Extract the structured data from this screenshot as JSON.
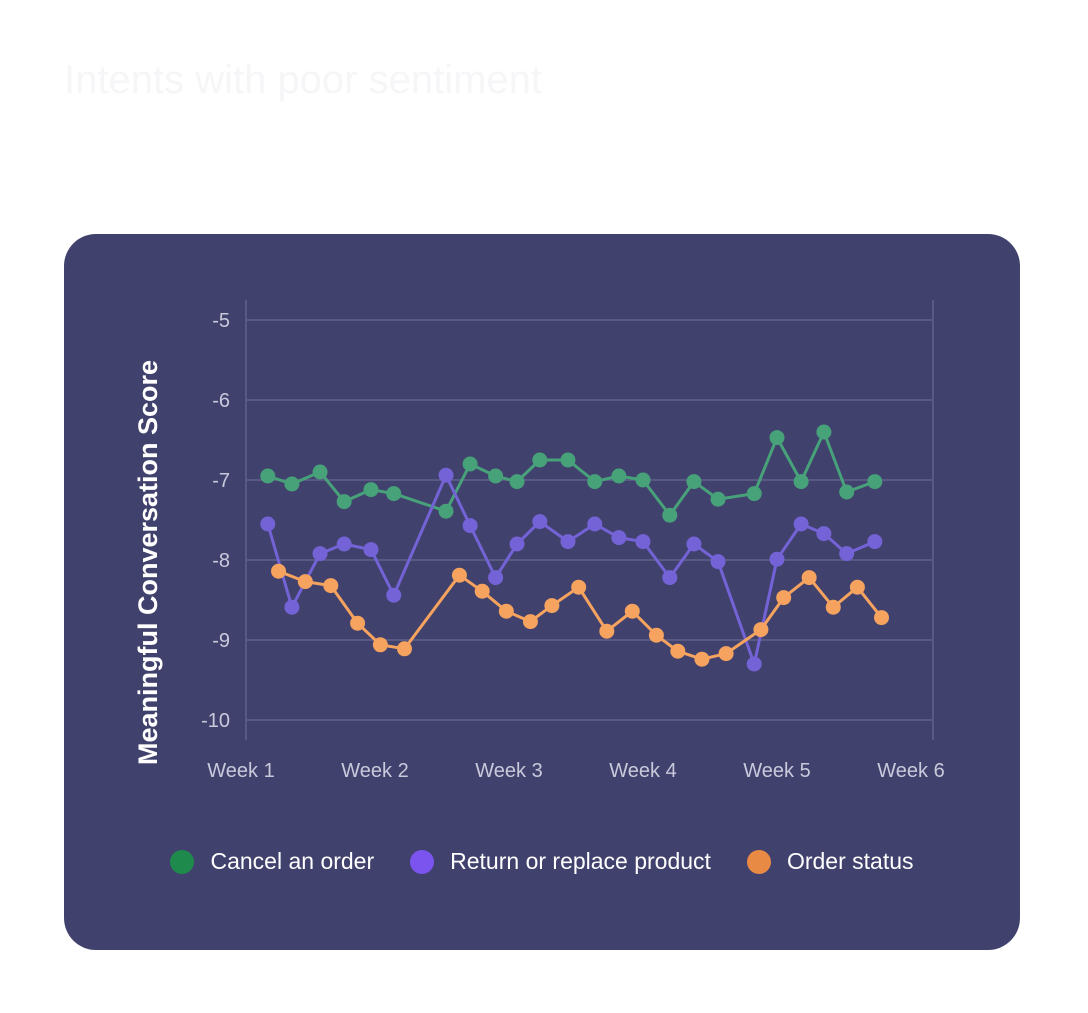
{
  "page": {
    "title": "Intents with poor sentiment"
  },
  "chart_data": {
    "type": "line",
    "ylabel": "Meaningful Conversation Score",
    "xlabel": "",
    "ylim": [
      -10,
      -5
    ],
    "yticks": [
      -5,
      -6,
      -7,
      -8,
      -9,
      -10
    ],
    "xlim": [
      1,
      6
    ],
    "x_tick_labels": [
      "Week 1",
      "Week 2",
      "Week 3",
      "Week 4",
      "Week 5",
      "Week 6"
    ],
    "grid": true,
    "legend_position": "bottom",
    "series": [
      {
        "name": "Cancel an order",
        "color": "#47a27a",
        "legend_color": "#1e8a4c",
        "points": [
          [
            1.2,
            -6.95
          ],
          [
            1.38,
            -7.05
          ],
          [
            1.59,
            -6.9
          ],
          [
            1.77,
            -7.27
          ],
          [
            1.97,
            -7.12
          ],
          [
            2.14,
            -7.17
          ],
          [
            2.53,
            -7.39
          ],
          [
            2.71,
            -6.8
          ],
          [
            2.9,
            -6.95
          ],
          [
            3.06,
            -7.02
          ],
          [
            3.23,
            -6.75
          ],
          [
            3.44,
            -6.75
          ],
          [
            3.64,
            -7.02
          ],
          [
            3.82,
            -6.95
          ],
          [
            4.0,
            -7.0
          ],
          [
            4.2,
            -7.44
          ],
          [
            4.38,
            -7.02
          ],
          [
            4.56,
            -7.24
          ],
          [
            4.83,
            -7.17
          ],
          [
            5.0,
            -6.47
          ],
          [
            5.18,
            -7.02
          ],
          [
            5.35,
            -6.4
          ],
          [
            5.52,
            -7.15
          ],
          [
            5.73,
            -7.02
          ]
        ]
      },
      {
        "name": "Return or replace product",
        "color": "#7463d6",
        "legend_color": "#7b54f0",
        "points": [
          [
            1.2,
            -7.55
          ],
          [
            1.38,
            -8.59
          ],
          [
            1.59,
            -7.92
          ],
          [
            1.77,
            -7.8
          ],
          [
            1.97,
            -7.87
          ],
          [
            2.14,
            -8.44
          ],
          [
            2.53,
            -6.94
          ],
          [
            2.71,
            -7.57
          ],
          [
            2.9,
            -8.22
          ],
          [
            3.06,
            -7.8
          ],
          [
            3.23,
            -7.52
          ],
          [
            3.44,
            -7.77
          ],
          [
            3.64,
            -7.55
          ],
          [
            3.82,
            -7.72
          ],
          [
            4.0,
            -7.77
          ],
          [
            4.2,
            -8.22
          ],
          [
            4.38,
            -7.8
          ],
          [
            4.56,
            -8.02
          ],
          [
            4.83,
            -9.3
          ],
          [
            5.0,
            -7.99
          ],
          [
            5.18,
            -7.55
          ],
          [
            5.35,
            -7.67
          ],
          [
            5.52,
            -7.92
          ],
          [
            5.73,
            -7.77
          ]
        ]
      },
      {
        "name": "Order status",
        "color": "#f5a35f",
        "legend_color": "#e98a44",
        "points": [
          [
            1.28,
            -8.14
          ],
          [
            1.48,
            -8.27
          ],
          [
            1.67,
            -8.32
          ],
          [
            1.87,
            -8.79
          ],
          [
            2.04,
            -9.06
          ],
          [
            2.22,
            -9.11
          ],
          [
            2.63,
            -8.19
          ],
          [
            2.8,
            -8.39
          ],
          [
            2.98,
            -8.64
          ],
          [
            3.16,
            -8.77
          ],
          [
            3.32,
            -8.57
          ],
          [
            3.52,
            -8.34
          ],
          [
            3.73,
            -8.89
          ],
          [
            3.92,
            -8.64
          ],
          [
            4.1,
            -8.94
          ],
          [
            4.26,
            -9.14
          ],
          [
            4.44,
            -9.24
          ],
          [
            4.62,
            -9.17
          ],
          [
            4.88,
            -8.87
          ],
          [
            5.05,
            -8.47
          ],
          [
            5.24,
            -8.22
          ],
          [
            5.42,
            -8.59
          ],
          [
            5.6,
            -8.34
          ],
          [
            5.78,
            -8.72
          ]
        ]
      }
    ]
  }
}
